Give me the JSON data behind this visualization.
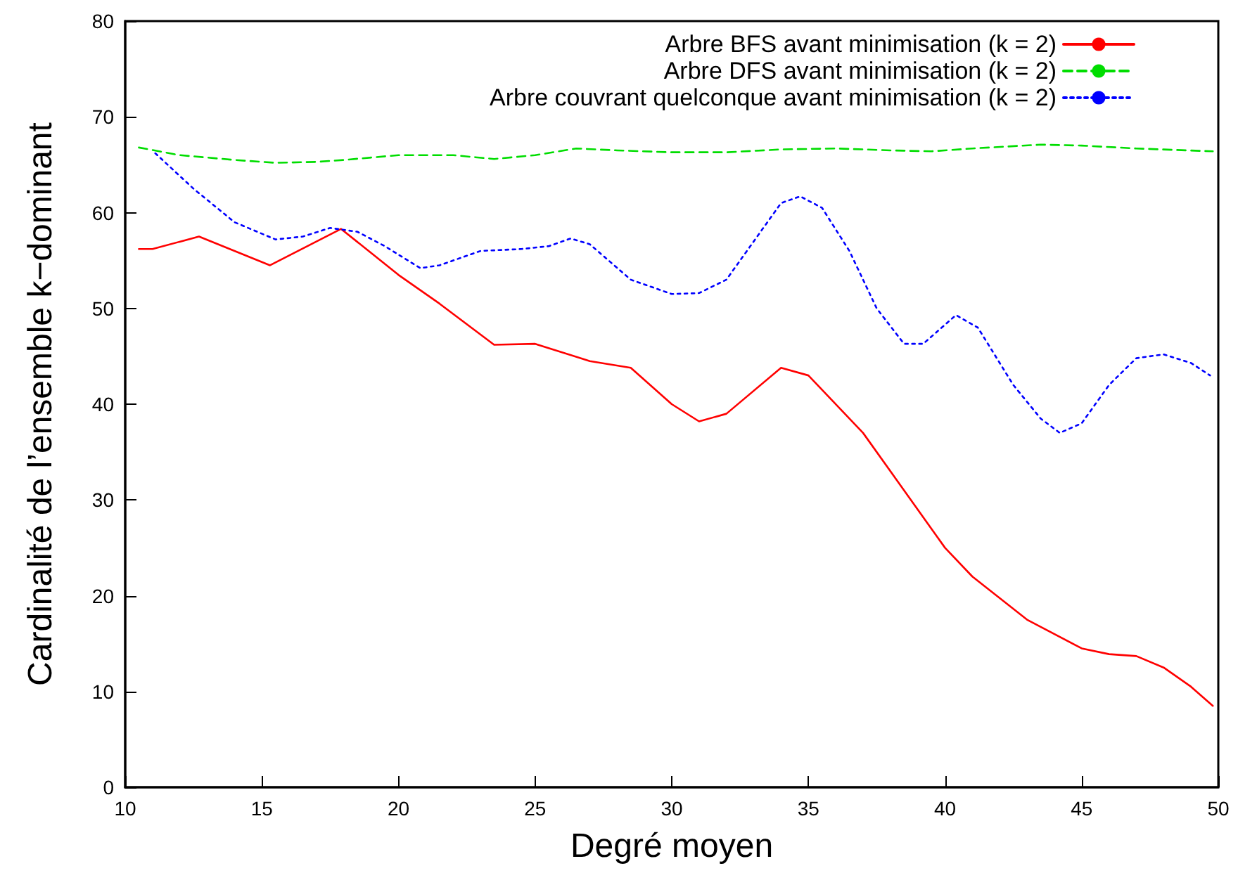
{
  "chart_data": {
    "type": "line",
    "xlabel": "Degré moyen",
    "ylabel": "Cardinalité de l’ensemble k−dominant",
    "xlim": [
      10,
      50
    ],
    "xticks": [
      10,
      15,
      20,
      25,
      30,
      35,
      40,
      45,
      50
    ],
    "ylim": [
      0,
      80
    ],
    "yticks": [
      0,
      10,
      20,
      30,
      40,
      50,
      60,
      70,
      80
    ],
    "grid": false,
    "legend": "top right",
    "marker": "none",
    "series": [
      {
        "name": "Arbre BFS avant minimisation (k = 2)",
        "color": "#ff0000",
        "line_style": "solid",
        "x": [
          10.5,
          11,
          12.7,
          15.3,
          17.9,
          20,
          21.5,
          23.5,
          25,
          27,
          28.5,
          30,
          31,
          32,
          34,
          35,
          37,
          40,
          41,
          43,
          45,
          46,
          47,
          48,
          49,
          49.8
        ],
        "values": [
          56.2,
          56.2,
          57.5,
          54.5,
          58.3,
          53.5,
          50.5,
          46.2,
          46.3,
          44.5,
          43.8,
          40,
          38.2,
          39,
          43.8,
          43,
          37,
          25,
          22,
          17.5,
          14.5,
          13.9,
          13.7,
          12.5,
          10.5,
          8.5
        ]
      },
      {
        "name": "Arbre DFS avant minimisation (k = 2)",
        "color": "#00dd00",
        "line_style": "dashed",
        "x": [
          10.5,
          12,
          14,
          15.5,
          17,
          18,
          20,
          22,
          23.5,
          25,
          26.5,
          28,
          30,
          32,
          34,
          36,
          38,
          39.5,
          41,
          43.5,
          45,
          47,
          49.8
        ],
        "values": [
          66.8,
          66,
          65.5,
          65.2,
          65.3,
          65.5,
          66,
          66,
          65.6,
          66,
          66.7,
          66.5,
          66.3,
          66.3,
          66.6,
          66.7,
          66.5,
          66.4,
          66.7,
          67.1,
          67,
          66.7,
          66.4
        ]
      },
      {
        "name": "Arbre couvrant quelconque avant minimisation (k = 2)",
        "color": "#0000ff",
        "line_style": "dotted",
        "x": [
          11.1,
          12.5,
          14,
          15.5,
          16.5,
          17.5,
          18.5,
          19.5,
          20.8,
          21.5,
          23,
          24.5,
          25.5,
          26.3,
          27,
          28.5,
          30,
          31,
          32,
          33,
          34,
          34.7,
          35.5,
          36.5,
          37.5,
          38.5,
          39.2,
          40.4,
          41.2,
          42.5,
          43.5,
          44.2,
          45,
          46,
          47,
          48,
          49,
          49.7
        ],
        "values": [
          66.2,
          62.5,
          59,
          57.2,
          57.5,
          58.4,
          58,
          56.5,
          54.2,
          54.5,
          56,
          56.2,
          56.5,
          57.3,
          56.7,
          53,
          51.5,
          51.6,
          53,
          57,
          61,
          61.7,
          60.5,
          56,
          50,
          46.3,
          46.3,
          49.3,
          48,
          42,
          38.5,
          37,
          38,
          42,
          44.8,
          45.2,
          44.3,
          43
        ]
      }
    ]
  }
}
